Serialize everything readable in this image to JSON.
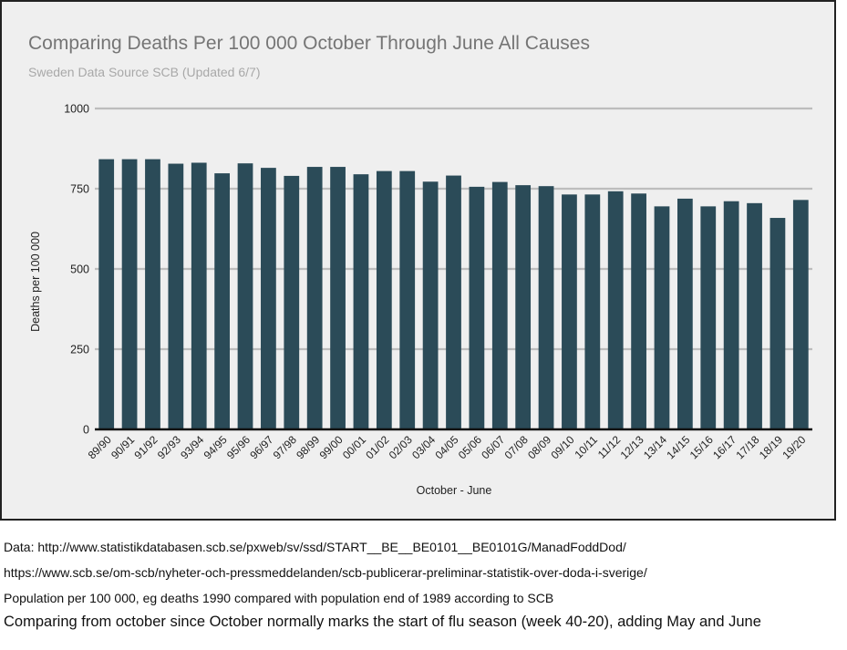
{
  "chart_data": {
    "type": "bar",
    "title": "Comparing Deaths Per 100 000 October Through June All Causes",
    "subtitle": "Sweden Data Source SCB (Updated 6/7)",
    "xlabel": "October - June",
    "ylabel": "Deaths per 100 000",
    "ylim": [
      0,
      1000
    ],
    "yticks": [
      0,
      250,
      500,
      750,
      1000
    ],
    "grid": true,
    "bar_color": "#2b4b58",
    "categories": [
      "89/90",
      "90/91",
      "91/92",
      "92/93",
      "93/94",
      "94/95",
      "95/96",
      "96/97",
      "97/98",
      "98/99",
      "99/00",
      "00/01",
      "01/02",
      "02/03",
      "03/04",
      "04/05",
      "05/06",
      "06/07",
      "07/08",
      "08/09",
      "09/10",
      "10/11",
      "11/12",
      "12/13",
      "13/14",
      "14/15",
      "15/16",
      "16/17",
      "17/18",
      "18/19",
      "19/20"
    ],
    "values": [
      842,
      842,
      842,
      828,
      831,
      798,
      829,
      815,
      790,
      818,
      818,
      795,
      805,
      805,
      772,
      791,
      756,
      771,
      761,
      758,
      732,
      732,
      742,
      735,
      695,
      719,
      695,
      711,
      705,
      659,
      715
    ]
  },
  "footnotes": [
    "Data: http://www.statistikdatabasen.scb.se/pxweb/sv/ssd/START__BE__BE0101__BE0101G/ManadFoddDod/",
    "https://www.scb.se/om-scb/nyheter-och-pressmeddelanden/scb-publicerar-preliminar-statistik-over-doda-i-sverige/",
    "Population per 100 000, eg deaths 1990 compared with population end of 1989 according to SCB",
    "Comparing from october since October normally marks the start of flu season (week 40-20), adding May and June"
  ]
}
